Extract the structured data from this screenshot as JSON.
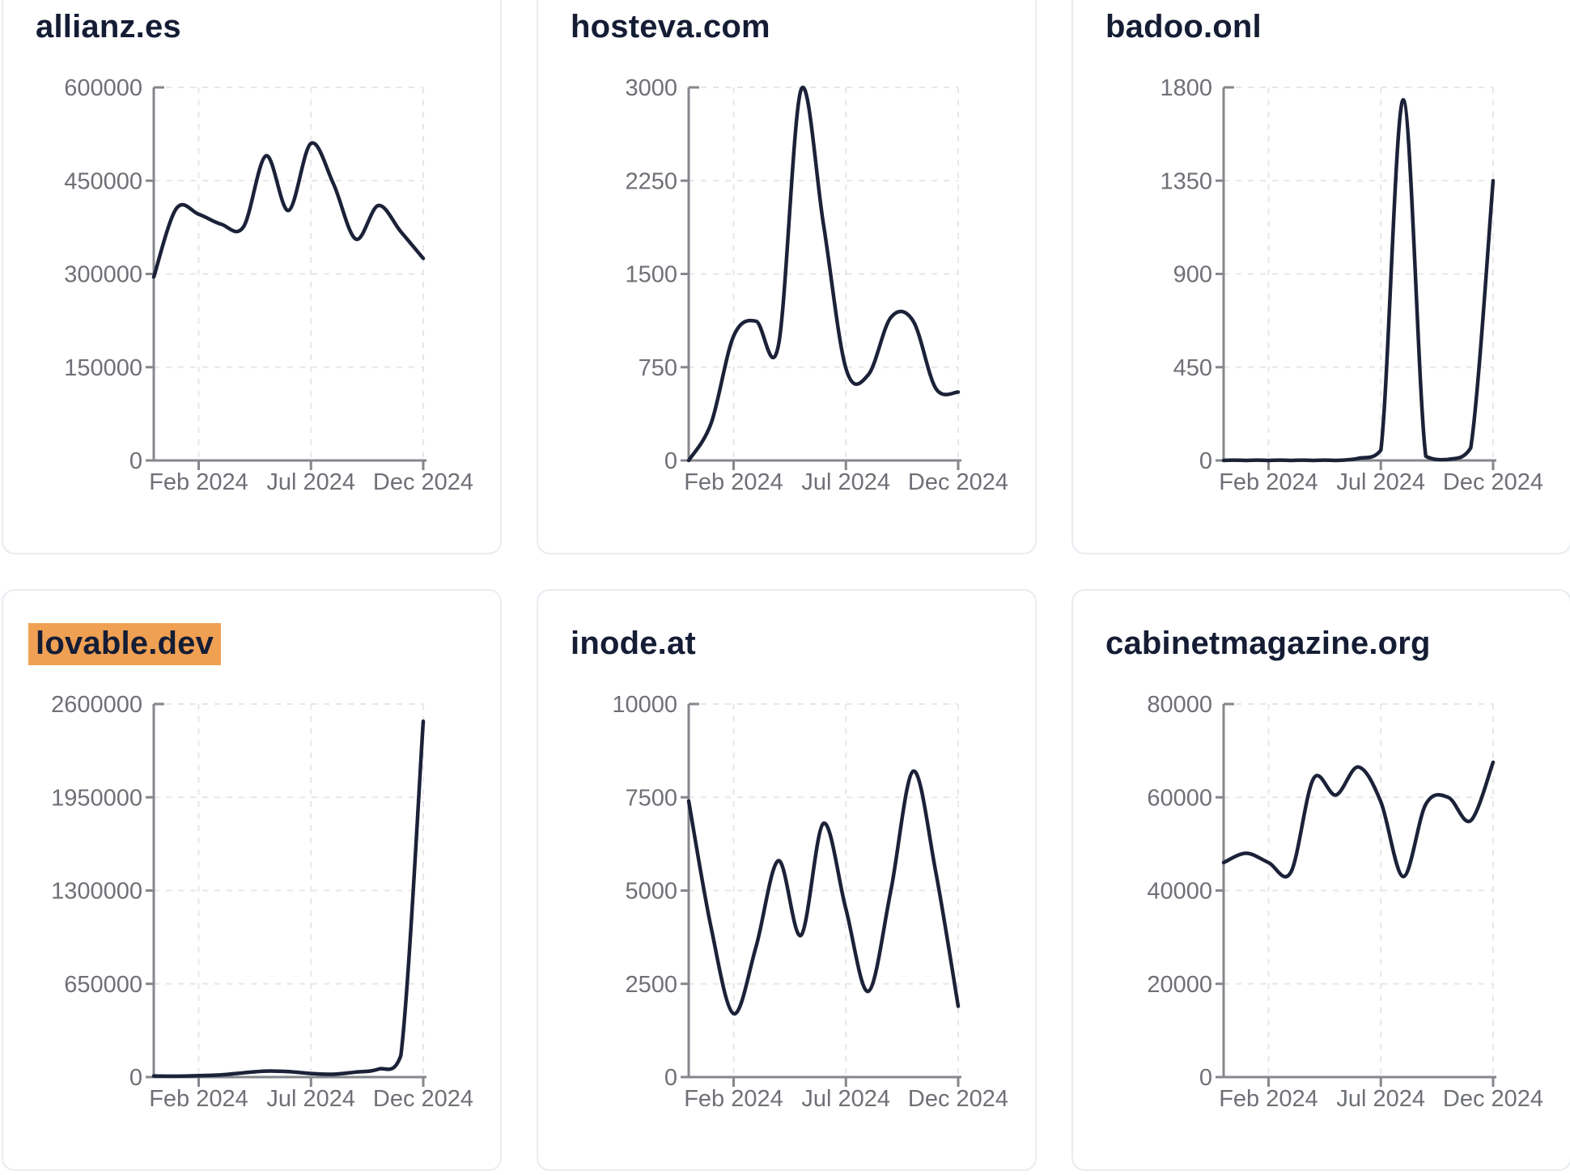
{
  "style": {
    "line_color": "#1b2238",
    "title_color": "#151d35",
    "tick_label_color": "#6e7076",
    "grid_color": "#e7e7ea",
    "axis_color": "#85878c",
    "card_border_color": "#e9ecf1",
    "card_background": "#ffffff",
    "page_background": "#ffffff",
    "highlight_color": "#f0a053"
  },
  "layout_note": "2x3 grid of sparkline cards; top row cropped at top of viewport",
  "chart_data": [
    {
      "type": "line",
      "title": "allianz.es",
      "title_highlighted": false,
      "x_tick_labels": [
        "Feb 2024",
        "Jul 2024",
        "Dec 2024"
      ],
      "x_tick_months": [
        2,
        7,
        12
      ],
      "x_month_index": [
        0,
        1,
        2,
        3,
        4,
        5,
        6,
        7,
        8,
        9,
        10,
        11,
        12
      ],
      "values": [
        295000,
        405000,
        396000,
        380000,
        376000,
        490000,
        402000,
        510000,
        445000,
        356000,
        410000,
        368000,
        325000
      ],
      "y_ticks": [
        0,
        150000,
        300000,
        450000,
        600000
      ],
      "ylim": [
        0,
        600000
      ],
      "grid": "dashed"
    },
    {
      "type": "line",
      "title": "hosteva.com",
      "title_highlighted": false,
      "x_tick_labels": [
        "Feb 2024",
        "Jul 2024",
        "Dec 2024"
      ],
      "x_tick_months": [
        2,
        7,
        12
      ],
      "x_month_index": [
        0,
        1,
        2,
        3,
        4,
        5,
        6,
        7,
        8,
        9,
        10,
        11,
        12
      ],
      "values": [
        0,
        300,
        1000,
        1120,
        930,
        2980,
        1900,
        740,
        690,
        1150,
        1120,
        580,
        550
      ],
      "y_ticks": [
        0,
        750,
        1500,
        2250,
        3000
      ],
      "ylim": [
        0,
        3000
      ],
      "grid": "dashed"
    },
    {
      "type": "line",
      "title": "badoo.onl",
      "title_highlighted": false,
      "x_tick_labels": [
        "Feb 2024",
        "Jul 2024",
        "Dec 2024"
      ],
      "x_tick_months": [
        2,
        7,
        12
      ],
      "x_month_index": [
        0,
        1,
        2,
        3,
        4,
        5,
        6,
        7,
        8,
        9,
        10,
        11,
        12
      ],
      "values": [
        0,
        0,
        0,
        0,
        0,
        0,
        10,
        50,
        1740,
        20,
        5,
        60,
        1350
      ],
      "y_ticks": [
        0,
        450,
        900,
        1350,
        1800
      ],
      "ylim": [
        0,
        1800
      ],
      "grid": "dashed"
    },
    {
      "type": "line",
      "title": "lovable.dev",
      "title_highlighted": true,
      "x_tick_labels": [
        "Feb 2024",
        "Jul 2024",
        "Dec 2024"
      ],
      "x_tick_months": [
        2,
        7,
        12
      ],
      "x_month_index": [
        0,
        1,
        2,
        3,
        4,
        5,
        6,
        7,
        8,
        9,
        10,
        11,
        12
      ],
      "values": [
        8000,
        6000,
        10000,
        15000,
        30000,
        42000,
        38000,
        25000,
        20000,
        35000,
        55000,
        150000,
        2480000
      ],
      "y_ticks": [
        0,
        650000,
        1300000,
        1950000,
        2600000
      ],
      "ylim": [
        0,
        2600000
      ],
      "grid": "dashed"
    },
    {
      "type": "line",
      "title": "inode.at",
      "title_highlighted": false,
      "x_tick_labels": [
        "Feb 2024",
        "Jul 2024",
        "Dec 2024"
      ],
      "x_tick_months": [
        2,
        7,
        12
      ],
      "x_month_index": [
        0,
        1,
        2,
        3,
        4,
        5,
        6,
        7,
        8,
        9,
        10,
        11,
        12
      ],
      "values": [
        7400,
        4000,
        1700,
        3500,
        5800,
        3800,
        6800,
        4500,
        2300,
        5000,
        8200,
        5500,
        1900
      ],
      "y_ticks": [
        0,
        2500,
        5000,
        7500,
        10000
      ],
      "ylim": [
        0,
        10000
      ],
      "grid": "dashed"
    },
    {
      "type": "line",
      "title": "cabinetmagazine.org",
      "title_highlighted": false,
      "x_tick_labels": [
        "Feb 2024",
        "Jul 2024",
        "Dec 2024"
      ],
      "x_tick_months": [
        2,
        7,
        12
      ],
      "x_month_index": [
        0,
        1,
        2,
        3,
        4,
        5,
        6,
        7,
        8,
        9,
        10,
        11,
        12
      ],
      "values": [
        46000,
        48000,
        46000,
        44000,
        64000,
        60500,
        66500,
        59000,
        43000,
        58500,
        60000,
        55000,
        67500
      ],
      "y_ticks": [
        0,
        20000,
        40000,
        60000,
        80000
      ],
      "ylim": [
        0,
        80000
      ],
      "grid": "dashed"
    }
  ]
}
